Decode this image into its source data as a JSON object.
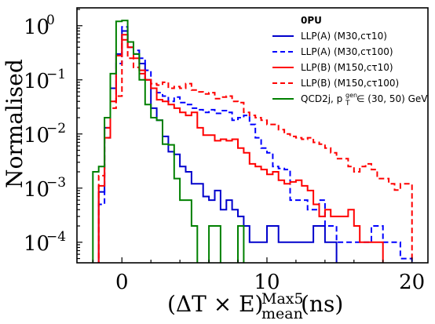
{
  "chart_data": {
    "type": "histogram-step",
    "title": "",
    "ylabel": "Normalised",
    "xlabel": "(ΔT × E)",
    "xlabel_sup": "Max5",
    "xlabel_sub": "mean",
    "xlabel_unit": "(ns)",
    "xlim": [
      -3.1,
      21.1
    ],
    "ylim_log10": [
      -4.38,
      0.33
    ],
    "y_log_scale": true,
    "grid": false,
    "x_ticks": [
      0,
      10,
      20
    ],
    "y_ticks": [
      {
        "exp": 0,
        "base": "10",
        "sup": "0"
      },
      {
        "exp": -1,
        "base": "10",
        "sup": "−1"
      },
      {
        "exp": -2,
        "base": "10",
        "sup": "−2"
      },
      {
        "exp": -3,
        "base": "10",
        "sup": "−3"
      },
      {
        "exp": -4,
        "base": "10",
        "sup": "−4"
      }
    ],
    "legend": {
      "placement": "top-right",
      "title": "0PU",
      "entries": [
        {
          "label": "LLP(A) (M30,cτ10)",
          "color": "#0000cc",
          "dashed": false
        },
        {
          "label": "LLP(A) (M30,cτ100)",
          "color": "#0000ff",
          "dashed": true
        },
        {
          "label": "LLP(B) (M150,cτ10)",
          "color": "#ff0000",
          "dashed": false
        },
        {
          "label": "LLP(B) (M150,cτ100)",
          "color": "#ff0000",
          "dashed": true
        },
        {
          "label": "QCD2j, p",
          "label_sup": "gen",
          "label_sub": "T",
          "label_tail": " ∈ (30, 50) GeV",
          "color": "#008000",
          "dashed": false
        }
      ]
    },
    "bin_edges": [
      -2.0,
      -1.6,
      -1.2,
      -0.8,
      -0.4,
      0.0,
      0.4,
      0.8,
      1.2,
      1.6,
      2.0,
      2.4,
      2.8,
      3.2,
      3.6,
      4.0,
      4.4,
      4.8,
      5.2,
      5.6,
      6.0,
      6.4,
      6.8,
      7.2,
      7.6,
      8.0,
      8.4,
      8.8,
      9.2,
      9.6,
      10.0,
      10.4,
      10.8,
      11.2,
      11.6,
      12.0,
      12.4,
      12.8,
      13.2,
      13.6,
      14.0,
      14.4,
      14.8,
      15.2,
      15.6,
      16.0,
      16.4,
      16.8,
      17.2,
      17.6,
      18.0,
      18.4,
      18.8,
      19.2,
      19.6,
      20.0
    ],
    "series": [
      {
        "name": "LLP(A) (M30,cτ10)",
        "color": "#0000cc",
        "dashed": false,
        "values": [
          0,
          0.00085,
          0.013,
          0.07,
          0.3,
          0.8,
          0.4,
          0.3,
          0.2,
          0.1,
          0.03,
          0.018,
          0.009,
          0.0047,
          0.0042,
          0.0025,
          0.002,
          0.0012,
          0.0012,
          0.0007,
          0.0006,
          0.0009,
          0.0004,
          0.0006,
          0.0004,
          0.0003,
          0.0002,
          0.0001,
          0.0001,
          0.0001,
          0.0002,
          0.0002,
          0.0001,
          0.0001,
          0.0001,
          0.0001,
          0.0001,
          0.0001,
          0.0002,
          0.0002,
          0.0001,
          0.0001,
          0,
          0,
          0,
          0,
          0,
          0,
          0,
          0,
          0,
          0,
          0,
          0,
          0
        ]
      },
      {
        "name": "LLP(A) (M30,cτ100)",
        "color": "#0000ff",
        "dashed": true,
        "values": [
          0,
          0.0005,
          0.0085,
          0.04,
          0.2,
          0.95,
          0.5,
          0.35,
          0.25,
          0.15,
          0.07,
          0.058,
          0.05,
          0.04,
          0.048,
          0.038,
          0.035,
          0.03,
          0.028,
          0.025,
          0.028,
          0.024,
          0.027,
          0.025,
          0.018,
          0.02,
          0.022,
          0.015,
          0.0085,
          0.0055,
          0.0045,
          0.0025,
          0.0023,
          0.0022,
          0.0006,
          0.0006,
          0.0006,
          0.0004,
          0.0004,
          0.0006,
          0.0002,
          0.0002,
          0.0001,
          0.0001,
          0.0001,
          0.0001,
          0.0001,
          0.0001,
          0.0002,
          0.0002,
          0.0001,
          0.0001,
          0.0001,
          5e-05,
          5e-05
        ]
      },
      {
        "name": "LLP(B) (M150,cτ10)",
        "color": "#ff0000",
        "dashed": false,
        "values": [
          0,
          0.0011,
          0.0085,
          0.04,
          0.28,
          0.68,
          0.4,
          0.25,
          0.15,
          0.1,
          0.07,
          0.043,
          0.04,
          0.035,
          0.03,
          0.025,
          0.022,
          0.025,
          0.013,
          0.0095,
          0.0095,
          0.0075,
          0.008,
          0.0075,
          0.008,
          0.0055,
          0.0045,
          0.0028,
          0.0025,
          0.0022,
          0.0018,
          0.002,
          0.0014,
          0.0012,
          0.0013,
          0.0014,
          0.0011,
          0.0009,
          0.0005,
          0.0003,
          0.0004,
          0.0003,
          0.0003,
          0.0003,
          0.0004,
          0.0002,
          0.0001,
          0.0001,
          0.0001,
          0.0001,
          0,
          0,
          0,
          0,
          0
        ]
      },
      {
        "name": "LLP(B) (M150,cτ100)",
        "color": "#ff0000",
        "dashed": true,
        "values": [
          0,
          0.0017,
          0.013,
          0.03,
          0.05,
          0.55,
          0.25,
          0.17,
          0.13,
          0.1,
          0.085,
          0.08,
          0.09,
          0.07,
          0.075,
          0.07,
          0.085,
          0.065,
          0.06,
          0.055,
          0.058,
          0.045,
          0.048,
          0.05,
          0.04,
          0.038,
          0.025,
          0.022,
          0.02,
          0.018,
          0.015,
          0.015,
          0.012,
          0.01,
          0.009,
          0.0085,
          0.008,
          0.0085,
          0.007,
          0.0065,
          0.0055,
          0.0045,
          0.0035,
          0.0035,
          0.0025,
          0.002,
          0.0025,
          0.0028,
          0.0022,
          0.0015,
          0.0015,
          0.0012,
          0.00092,
          0.0012,
          0.0012
        ]
      },
      {
        "name": "QCD2j, pT gen ∈ (30, 50) GeV",
        "color": "#008000",
        "dashed": false,
        "values": [
          0.002,
          0.0025,
          0.02,
          0.13,
          1.2,
          1.25,
          0.5,
          0.3,
          0.1,
          0.035,
          0.02,
          0.018,
          0.0065,
          0.0063,
          0.0015,
          0.0006,
          0.0006,
          0.0002,
          0,
          0,
          0.0002,
          0.0002,
          0,
          0,
          0,
          0.0002,
          0,
          0,
          0,
          0,
          0,
          0,
          0,
          0,
          0,
          0,
          0,
          0,
          0,
          0,
          0,
          0,
          0,
          0,
          0,
          0,
          0,
          0,
          0,
          0,
          0,
          0,
          0,
          0,
          0
        ]
      }
    ]
  }
}
